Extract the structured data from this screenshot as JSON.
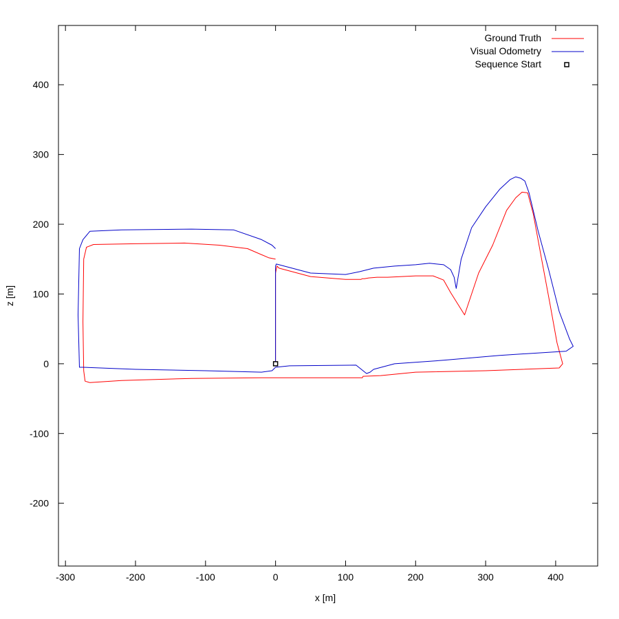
{
  "chart_data": {
    "type": "line",
    "title": "",
    "xlabel": "x [m]",
    "ylabel": "z [m]",
    "xlim": [
      -310,
      460
    ],
    "ylim": [
      -290,
      485
    ],
    "grid": false,
    "legend_placement": "top-right",
    "x_ticks": [
      -300,
      -200,
      -100,
      0,
      100,
      200,
      300,
      400
    ],
    "y_ticks": [
      -200,
      -100,
      0,
      100,
      200,
      300,
      400
    ],
    "series": [
      {
        "name": "Ground Truth",
        "color": "#ff0000",
        "x": [
          0,
          0,
          0,
          2,
          5,
          50,
          100,
          120,
          122,
          122,
          124,
          127,
          133,
          145,
          160,
          180,
          200,
          225,
          240,
          250,
          270,
          290,
          310,
          330,
          343,
          352,
          360,
          368,
          380,
          392,
          402,
          410,
          405,
          300,
          200,
          150,
          125,
          124,
          0,
          -20,
          -120,
          -220,
          -265,
          -272,
          -274,
          -275,
          -274,
          -270,
          -260,
          -200,
          -130,
          -80,
          -40,
          -10,
          0
        ],
        "y": [
          0,
          70,
          130,
          140,
          137,
          125,
          121,
          121,
          121,
          121,
          122,
          122,
          123,
          124,
          124,
          125,
          126,
          126,
          120,
          102,
          70,
          130,
          170,
          220,
          238,
          246,
          245,
          215,
          150,
          85,
          30,
          0,
          -6,
          -10,
          -12,
          -17,
          -18,
          -20,
          -20,
          -20,
          -21,
          -24,
          -27,
          -25,
          -10,
          60,
          150,
          167,
          171,
          172,
          173,
          170,
          165,
          152,
          150
        ]
      },
      {
        "name": "Visual Odometry",
        "color": "#0000c8",
        "x": [
          0,
          0,
          0,
          0,
          1,
          5,
          50,
          100,
          120,
          140,
          170,
          200,
          220,
          240,
          250,
          255,
          258,
          265,
          280,
          300,
          320,
          335,
          343,
          350,
          356,
          362,
          375,
          390,
          405,
          420,
          425,
          415,
          320,
          240,
          170,
          140,
          135,
          130,
          115,
          20,
          0,
          -5,
          -20,
          -100,
          -200,
          -275,
          -280,
          -282,
          -280,
          -275,
          -265,
          -220,
          -120,
          -60,
          -20,
          -5,
          0
        ],
        "y": [
          0,
          40,
          100,
          140,
          143,
          142,
          130,
          128,
          132,
          137,
          140,
          142,
          144,
          142,
          135,
          124,
          108,
          150,
          195,
          225,
          250,
          264,
          268,
          266,
          262,
          245,
          190,
          135,
          75,
          35,
          25,
          18,
          12,
          5,
          0,
          -8,
          -12,
          -14,
          -2,
          -3,
          -5,
          -10,
          -12,
          -10,
          -8,
          -5,
          -5,
          70,
          165,
          178,
          190,
          192,
          193,
          192,
          178,
          170,
          165
        ]
      }
    ],
    "markers": [
      {
        "name": "Sequence Start",
        "x": 0,
        "y": 0,
        "color": "#000000"
      }
    ]
  }
}
